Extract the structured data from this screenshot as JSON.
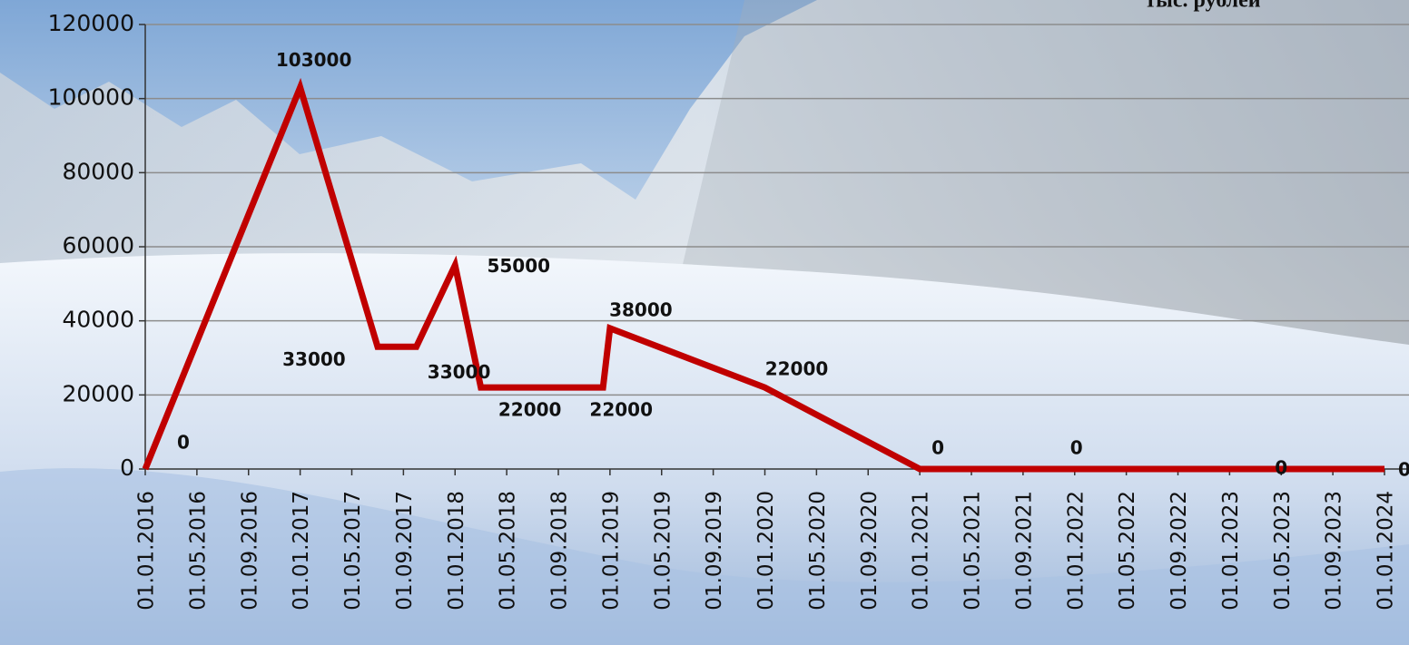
{
  "chart_data": {
    "type": "line",
    "unit_label": "тыс. рублей",
    "x": [
      "01.01.2016",
      "01.01.2017",
      "01.07.2017",
      "01.10.2017",
      "01.01.2018",
      "01.03.2018",
      "15.12.2018",
      "01.01.2019",
      "01.01.2020",
      "01.01.2021",
      "01.01.2022",
      "01.05.2023",
      "01.01.2024"
    ],
    "series": [
      {
        "name": "тыс. рублей",
        "color": "#c00000",
        "values": [
          0,
          103000,
          33000,
          33000,
          55000,
          22000,
          22000,
          38000,
          22000,
          0,
          0,
          0,
          0
        ]
      }
    ],
    "xlim": [
      "01.01.2016",
      "01.01.2024"
    ],
    "xticks": [
      "01.01.2016",
      "01.05.2016",
      "01.09.2016",
      "01.01.2017",
      "01.05.2017",
      "01.09.2017",
      "01.01.2018",
      "01.05.2018",
      "01.09.2018",
      "01.01.2019",
      "01.05.2019",
      "01.09.2019",
      "01.01.2020",
      "01.05.2020",
      "01.09.2020",
      "01.01.2021",
      "01.05.2021",
      "01.09.2021",
      "01.01.2022",
      "01.05.2022",
      "01.09.2022",
      "01.01.2023",
      "01.05.2023",
      "01.09.2023",
      "01.01.2024"
    ],
    "ylim": [
      0,
      120000
    ],
    "yticks": [
      0,
      20000,
      40000,
      60000,
      80000,
      100000,
      120000
    ],
    "grid": true
  }
}
